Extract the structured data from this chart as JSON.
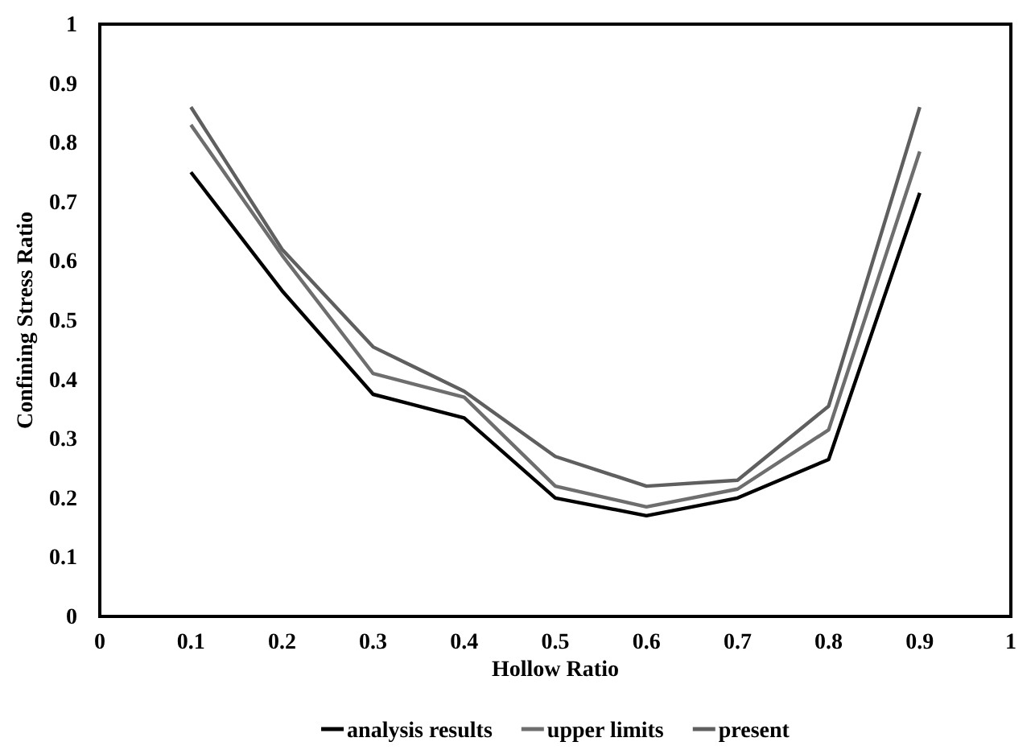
{
  "chart_data": {
    "type": "line",
    "xlabel": "Hollow Ratio",
    "ylabel": "Confining Stress Ratio",
    "x": [
      0.1,
      0.2,
      0.3,
      0.4,
      0.5,
      0.6,
      0.7,
      0.8,
      0.9
    ],
    "series": [
      {
        "name": "analysis results",
        "color": "#000000",
        "values": [
          0.75,
          0.55,
          0.375,
          0.335,
          0.2,
          0.17,
          0.2,
          0.265,
          0.715
        ]
      },
      {
        "name": "upper limits",
        "color": "#6e6e6e",
        "values": [
          0.83,
          0.61,
          0.41,
          0.37,
          0.22,
          0.185,
          0.215,
          0.315,
          0.785
        ]
      },
      {
        "name": "present",
        "color": "#5f5f5f",
        "values": [
          0.86,
          0.62,
          0.455,
          0.38,
          0.27,
          0.22,
          0.23,
          0.355,
          0.86
        ]
      }
    ],
    "xlim": [
      0,
      1
    ],
    "xticks": [
      0,
      0.1,
      0.2,
      0.3,
      0.4,
      0.5,
      0.6,
      0.7,
      0.8,
      0.9,
      1
    ],
    "ylim": [
      0,
      1
    ],
    "yticks": [
      0,
      0.1,
      0.2,
      0.3,
      0.4,
      0.5,
      0.6,
      0.7,
      0.8,
      0.9,
      1
    ],
    "grid": false,
    "legend": "bottom",
    "marker": "none",
    "line_style": "solid"
  }
}
